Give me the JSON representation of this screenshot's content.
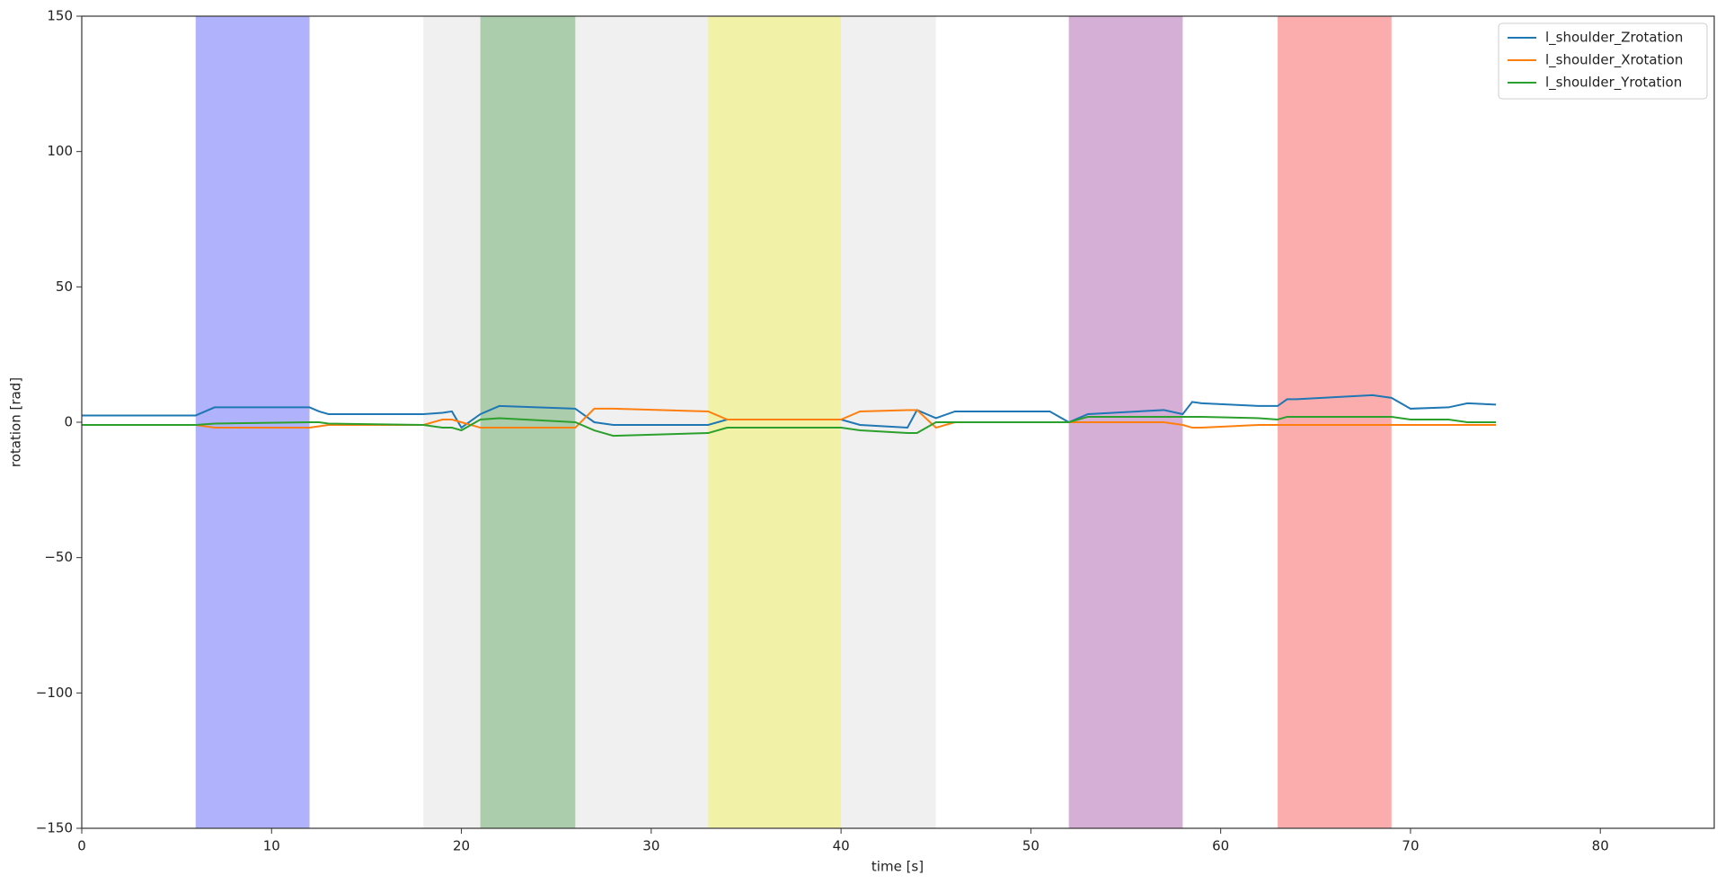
{
  "chart_data": {
    "type": "line",
    "xlabel": "time [s]",
    "ylabel": "rotation [rad]",
    "xlim": [
      0,
      86
    ],
    "ylim": [
      -150,
      150
    ],
    "xticks": [
      0,
      10,
      20,
      30,
      40,
      50,
      60,
      70,
      80
    ],
    "yticks": [
      {
        "value": -150,
        "label": "−150"
      },
      {
        "value": -100,
        "label": "−100"
      },
      {
        "value": -50,
        "label": "−50"
      },
      0,
      50,
      100,
      150
    ],
    "legend": "upper right",
    "spans": [
      {
        "start": 18,
        "end": 45,
        "color": "#f0f0f0"
      },
      {
        "start": 6,
        "end": 12,
        "color": "#b0b2fc"
      },
      {
        "start": 21,
        "end": 26,
        "color": "#abcdab"
      },
      {
        "start": 33,
        "end": 40,
        "color": "#f1f1a8"
      },
      {
        "start": 52,
        "end": 58,
        "color": "#d6afd6"
      },
      {
        "start": 63,
        "end": 69,
        "color": "#fbadad"
      }
    ],
    "x": [
      0,
      6,
      7,
      12,
      12.5,
      13,
      18,
      19,
      19.5,
      20,
      21,
      22,
      26,
      27,
      28,
      33,
      34,
      40,
      41,
      43.5,
      44,
      45,
      46,
      51,
      52,
      53,
      57,
      58,
      58.5,
      59,
      62,
      63,
      63.5,
      64,
      68,
      69,
      70,
      72,
      73,
      74.5
    ],
    "series": [
      {
        "name": "l_shoulder_Zrotation",
        "color": "#1f77b4",
        "values": [
          2.5,
          2.5,
          5.5,
          5.5,
          4,
          3,
          3,
          3.5,
          4,
          -2,
          3,
          6,
          5,
          0,
          -1,
          -1,
          1,
          1,
          -1,
          -2,
          4.5,
          1.5,
          4,
          4,
          0,
          3,
          4.5,
          3,
          7.5,
          7,
          6,
          6,
          8.5,
          8.5,
          10,
          9,
          5,
          5.5,
          7,
          6.5
        ]
      },
      {
        "name": "l_shoulder_Xrotation",
        "color": "#ff7f0e",
        "values": [
          -1,
          -1,
          -2,
          -2,
          -1.5,
          -1,
          -1,
          1,
          1,
          0,
          -2,
          -2,
          -2,
          5,
          5,
          4,
          1,
          1,
          4,
          4.5,
          4.5,
          -2,
          0,
          0,
          0,
          0,
          0,
          -1,
          -2,
          -2,
          -1,
          -1,
          -1,
          -1,
          -1,
          -1,
          -1,
          -1,
          -1,
          -1
        ]
      },
      {
        "name": "l_shoulder_Yrotation",
        "color": "#2ca02c",
        "values": [
          -1,
          -1,
          -0.5,
          0,
          0,
          -0.5,
          -1,
          -2,
          -2,
          -3,
          1,
          1.5,
          0,
          -3,
          -5,
          -4,
          -2,
          -2,
          -3,
          -4,
          -4,
          0,
          0,
          0,
          0,
          2,
          2,
          2,
          2,
          2,
          1.5,
          1,
          2,
          2,
          2,
          2,
          1,
          1,
          0,
          0
        ]
      }
    ]
  }
}
